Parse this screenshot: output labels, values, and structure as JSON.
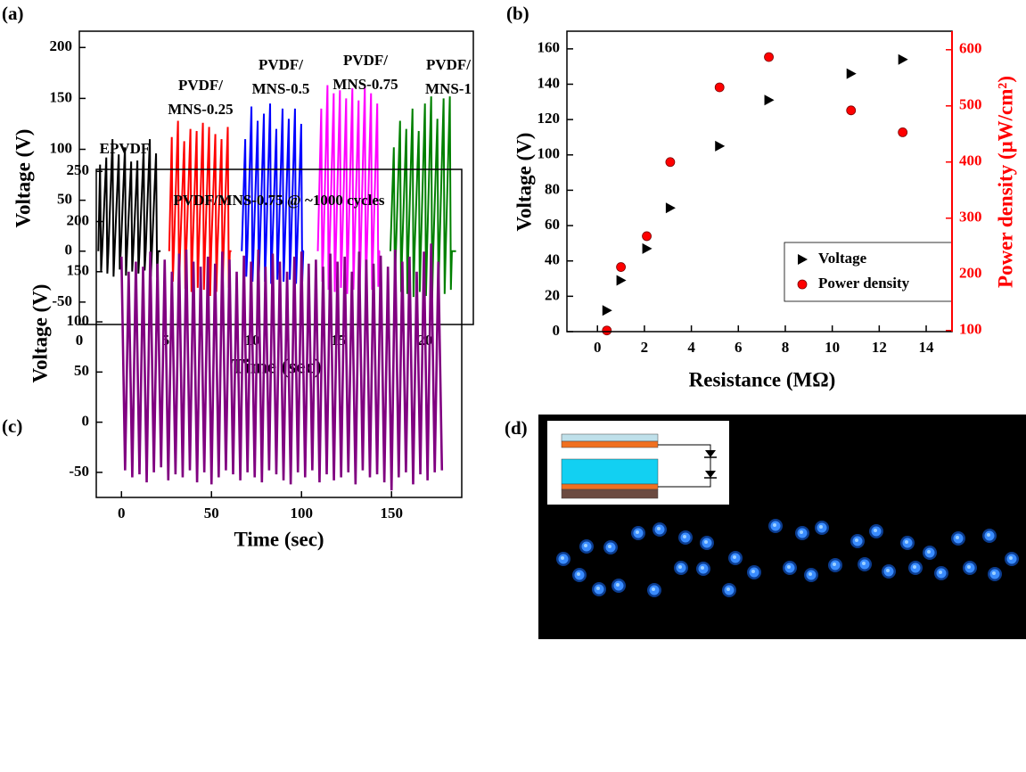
{
  "chart_data": [
    {
      "type": "line",
      "panel_label": "(a)",
      "xlabel": "Time (sec)",
      "ylabel": "Voltage (V)",
      "xlim": [
        0,
        22.8
      ],
      "ylim": [
        -72,
        216
      ],
      "xticks": [
        0,
        5,
        10,
        15,
        20
      ],
      "yticks": [
        -50,
        0,
        50,
        100,
        150,
        200
      ],
      "series": [
        {
          "label": [
            "EPVDF"
          ],
          "color": "#000000",
          "x": [
            1.1,
            1.2,
            1.26,
            1.32,
            1.56,
            1.62,
            1.68,
            1.92,
            1.98,
            2.04,
            2.28,
            2.34,
            2.4,
            2.64,
            2.7,
            2.76,
            3.0,
            3.06,
            3.12,
            3.36,
            3.42,
            3.48,
            3.72,
            3.78,
            3.84,
            4.08,
            4.14,
            4.2,
            4.44,
            4.5,
            4.56,
            4.7
          ],
          "values": [
            0,
            85,
            -20,
            0,
            92,
            -22,
            0,
            110,
            -25,
            0,
            95,
            -18,
            0,
            102,
            -24,
            0,
            88,
            -20,
            0,
            89,
            -22,
            0,
            100,
            -19,
            0,
            110,
            -25,
            0,
            96,
            -26,
            0,
            0
          ]
        },
        {
          "label": [
            "PVDF/",
            "MNS-0.25"
          ],
          "color": "#ff0000",
          "x": [
            5.2,
            5.35,
            5.41,
            5.47,
            5.71,
            5.77,
            5.83,
            6.07,
            6.13,
            6.19,
            6.43,
            6.49,
            6.55,
            6.79,
            6.85,
            6.91,
            7.15,
            7.21,
            7.27,
            7.51,
            7.57,
            7.63,
            7.87,
            7.93,
            7.99,
            8.23,
            8.29,
            8.35,
            8.59,
            8.65,
            8.71,
            8.8
          ],
          "values": [
            0,
            112,
            -30,
            0,
            128,
            -38,
            0,
            108,
            -37,
            0,
            120,
            -40,
            0,
            118,
            -36,
            0,
            126,
            -38,
            0,
            122,
            -44,
            0,
            115,
            -40,
            0,
            110,
            -38,
            0,
            122,
            -36,
            0,
            0
          ]
        },
        {
          "label": [
            "PVDF/",
            "MNS-0.5"
          ],
          "color": "#0000ff",
          "x": [
            9.4,
            9.6,
            9.66,
            9.72,
            9.96,
            10.02,
            10.08,
            10.32,
            10.38,
            10.44,
            10.68,
            10.74,
            10.8,
            11.04,
            11.1,
            11.16,
            11.4,
            11.46,
            11.52,
            11.76,
            11.82,
            11.88,
            12.12,
            12.18,
            12.24,
            12.48,
            12.54,
            12.6,
            12.84,
            12.9,
            12.96,
            13.0
          ],
          "values": [
            0,
            110,
            -25,
            0,
            142,
            -30,
            0,
            128,
            -28,
            0,
            135,
            -30,
            0,
            145,
            -32,
            0,
            120,
            -28,
            0,
            140,
            -30,
            0,
            130,
            -28,
            0,
            140,
            -32,
            0,
            125,
            -30,
            0,
            0
          ]
        },
        {
          "label": [
            "PVDF/",
            "MNS-0.75"
          ],
          "color": "#ff00ff",
          "x": [
            13.8,
            14.0,
            14.06,
            14.12,
            14.36,
            14.42,
            14.48,
            14.72,
            14.78,
            14.84,
            15.08,
            15.14,
            15.2,
            15.44,
            15.5,
            15.56,
            15.8,
            15.86,
            15.92,
            16.16,
            16.22,
            16.28,
            16.52,
            16.58,
            16.64,
            16.88,
            16.94,
            17.0,
            17.24,
            17.3,
            17.36,
            17.4
          ],
          "values": [
            0,
            140,
            -30,
            0,
            163,
            -38,
            0,
            155,
            -40,
            0,
            158,
            -36,
            0,
            150,
            -42,
            0,
            160,
            -38,
            0,
            148,
            -40,
            0,
            162,
            -42,
            0,
            155,
            -38,
            0,
            145,
            -35,
            0,
            0
          ]
        },
        {
          "label": [
            "PVDF/",
            "MNS-1"
          ],
          "color": "#008000",
          "x": [
            18.0,
            18.2,
            18.26,
            18.32,
            18.56,
            18.62,
            18.68,
            18.92,
            18.98,
            19.04,
            19.28,
            19.34,
            19.4,
            19.64,
            19.7,
            19.76,
            20.0,
            20.06,
            20.12,
            20.36,
            20.42,
            20.48,
            20.72,
            20.78,
            20.84,
            21.08,
            21.14,
            21.2,
            21.44,
            21.5,
            21.56,
            21.8
          ],
          "values": [
            0,
            102,
            -33,
            0,
            128,
            -40,
            0,
            120,
            -42,
            0,
            140,
            -45,
            0,
            118,
            -40,
            0,
            145,
            -44,
            0,
            152,
            -46,
            0,
            130,
            -40,
            0,
            150,
            -42,
            0,
            152,
            -38,
            0,
            0
          ]
        }
      ]
    },
    {
      "type": "scatter",
      "panel_label": "(b)",
      "xlabel": "Resistance (MΩ)",
      "ylabel": "Voltage (V)",
      "y2label": "Power density (μW/cm²)",
      "xlim": [
        -1.3,
        15.1
      ],
      "ylim": [
        0,
        170
      ],
      "y2lim": [
        98,
        633
      ],
      "xticks": [
        0,
        2,
        4,
        6,
        8,
        10,
        12,
        14
      ],
      "yticks": [
        0,
        20,
        40,
        60,
        80,
        100,
        120,
        140,
        160
      ],
      "y2ticks": [
        100,
        200,
        300,
        400,
        500,
        600
      ],
      "y2color": "#ff0000",
      "legend": "lower right",
      "series": [
        {
          "name": "Voltage",
          "marker": "triangle",
          "color": "#000000",
          "x": [
            0.4,
            1,
            2.1,
            3.1,
            5.2,
            7.3,
            10.8,
            13
          ],
          "values": [
            12,
            29,
            47,
            70,
            105,
            131,
            146,
            154
          ]
        },
        {
          "name": "Power density",
          "marker": "circle",
          "color": "#ff0000",
          "axis": "y2",
          "x": [
            0.4,
            1,
            2.1,
            3.1,
            5.2,
            7.3,
            10.8,
            13
          ],
          "values": [
            100,
            213,
            268,
            400,
            533,
            587,
            492,
            453
          ]
        }
      ]
    },
    {
      "type": "line",
      "panel_label": "(c)",
      "xlabel": "Time (sec)",
      "ylabel": "Voltage (V)",
      "annotation": "PVDF/MNS-0.75 @ ~1000 cycles",
      "xlim": [
        -14,
        189
      ],
      "ylim": [
        -75,
        252
      ],
      "xticks": [
        0,
        50,
        100,
        150
      ],
      "yticks": [
        -50,
        0,
        50,
        100,
        150,
        200,
        250
      ],
      "series": [
        {
          "color": "#800080",
          "x": [
            0,
            2,
            4,
            6,
            8,
            10,
            12,
            14,
            16,
            18,
            20,
            22,
            24,
            26,
            28,
            30,
            32,
            34,
            36,
            38,
            40,
            42,
            44,
            46,
            48,
            50,
            52,
            54,
            56,
            58,
            60,
            62,
            64,
            66,
            68,
            70,
            72,
            74,
            76,
            78,
            80,
            82,
            84,
            86,
            88,
            90,
            92,
            94,
            96,
            98,
            100,
            102,
            104,
            106,
            108,
            110,
            112,
            114,
            116,
            118,
            120,
            122,
            124,
            126,
            128,
            130,
            132,
            134,
            136,
            138,
            140,
            142,
            144,
            146,
            148,
            150,
            152,
            154,
            156,
            158,
            160,
            162,
            164,
            166,
            168,
            170,
            172,
            174,
            176,
            178
          ],
          "values": [
            165,
            -48,
            150,
            -55,
            160,
            -52,
            155,
            -60,
            170,
            -50,
            158,
            -45,
            162,
            -58,
            150,
            -52,
            168,
            -55,
            172,
            -48,
            160,
            -60,
            155,
            -50,
            165,
            -62,
            158,
            -55,
            170,
            -48,
            162,
            -52,
            150,
            -58,
            166,
            -50,
            160,
            -55,
            172,
            -60,
            155,
            -48,
            168,
            -52,
            160,
            -58,
            150,
            -62,
            165,
            -50,
            170,
            -55,
            158,
            -48,
            162,
            -60,
            155,
            -52,
            168,
            -58,
            160,
            -55,
            165,
            -50,
            150,
            -62,
            170,
            -48,
            162,
            -55,
            158,
            -52,
            166,
            -60,
            155,
            -68,
            172,
            -55,
            160,
            -50,
            165,
            -62,
            150,
            -52,
            170,
            -58,
            178,
            -50,
            160,
            -48
          ]
        }
      ]
    }
  ],
  "photo": {
    "panel_label": "(d)"
  }
}
